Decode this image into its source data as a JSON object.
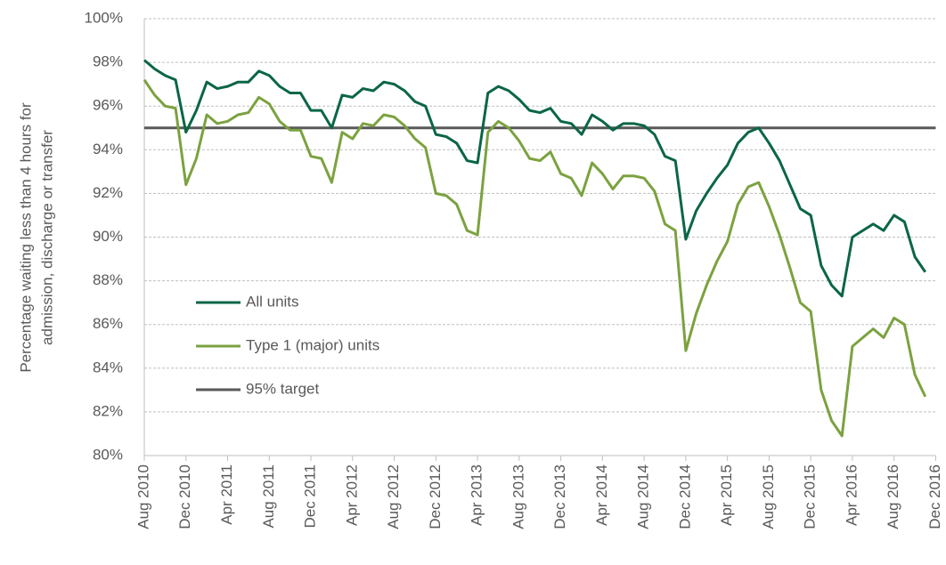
{
  "chart_data": {
    "type": "line",
    "ylabel": [
      "Percentage waiting less than 4 hours for",
      "admission, discharge or transfer"
    ],
    "categories": [
      "Aug 2010",
      null,
      null,
      null,
      "Dec 2010",
      null,
      null,
      null,
      "Apr 2011",
      null,
      null,
      null,
      "Aug 2011",
      null,
      null,
      null,
      "Dec 2011",
      null,
      null,
      null,
      "Apr 2012",
      null,
      null,
      null,
      "Aug 2012",
      null,
      null,
      null,
      "Dec 2012",
      null,
      null,
      null,
      "Apr 2013",
      null,
      null,
      null,
      "Aug 2013",
      null,
      null,
      null,
      "Dec 2013",
      null,
      null,
      null,
      "Apr 2014",
      null,
      null,
      null,
      "Aug 2014",
      null,
      null,
      null,
      "Dec 2014",
      null,
      null,
      null,
      "Apr 2015",
      null,
      null,
      null,
      "Aug 2015",
      null,
      null,
      null,
      "Dec 2015",
      null,
      null,
      null,
      "Apr 2016",
      null,
      null,
      null,
      "Aug 2016",
      null,
      null,
      null,
      "Dec 2016"
    ],
    "series": [
      {
        "name": "All units",
        "color": "#0b6645",
        "values": [
          98.1,
          97.7,
          97.4,
          97.2,
          94.8,
          95.8,
          97.1,
          96.8,
          96.9,
          97.1,
          97.1,
          97.6,
          97.4,
          96.9,
          96.6,
          96.6,
          95.8,
          95.8,
          95.0,
          96.5,
          96.4,
          96.8,
          96.7,
          97.1,
          97.0,
          96.7,
          96.2,
          96.0,
          94.7,
          94.6,
          94.3,
          93.5,
          93.4,
          96.6,
          96.9,
          96.7,
          96.3,
          95.8,
          95.7,
          95.9,
          95.3,
          95.2,
          94.7,
          95.6,
          95.3,
          94.9,
          95.2,
          95.2,
          95.1,
          94.7,
          93.7,
          93.5,
          89.9,
          91.2,
          92.0,
          92.7,
          93.3,
          94.3,
          94.8,
          95.0,
          94.3,
          93.5,
          92.4,
          91.3,
          91.0,
          88.7,
          87.8,
          87.3,
          90.0,
          90.3,
          90.6,
          90.3,
          91.0,
          90.7,
          89.1,
          88.4,
          null
        ]
      },
      {
        "name": "Type 1 (major) units",
        "color": "#7ba23f",
        "values": [
          97.2,
          96.5,
          96.0,
          95.9,
          92.4,
          93.6,
          95.6,
          95.2,
          95.3,
          95.6,
          95.7,
          96.4,
          96.1,
          95.3,
          94.9,
          94.9,
          93.7,
          93.6,
          92.5,
          94.8,
          94.5,
          95.2,
          95.1,
          95.6,
          95.5,
          95.1,
          94.5,
          94.1,
          92.0,
          91.9,
          91.5,
          90.3,
          90.1,
          94.8,
          95.3,
          95.0,
          94.4,
          93.6,
          93.5,
          93.9,
          92.9,
          92.7,
          91.9,
          93.4,
          92.9,
          92.2,
          92.8,
          92.8,
          92.7,
          92.1,
          90.6,
          90.3,
          84.8,
          86.5,
          87.8,
          88.9,
          89.8,
          91.5,
          92.3,
          92.5,
          91.4,
          90.1,
          88.6,
          87.0,
          86.6,
          83.0,
          81.6,
          80.9,
          85.0,
          85.4,
          85.8,
          85.4,
          86.3,
          86.0,
          83.7,
          82.7,
          null
        ]
      }
    ],
    "target": {
      "name": "95% target",
      "value": 95,
      "color": "#595959"
    },
    "ylim": [
      80,
      100
    ],
    "yticks": [
      {
        "value": 80,
        "label": "80%"
      },
      {
        "value": 82,
        "label": "82%"
      },
      {
        "value": 84,
        "label": "84%"
      },
      {
        "value": 86,
        "label": "86%"
      },
      {
        "value": 88,
        "label": "88%"
      },
      {
        "value": 90,
        "label": "90%"
      },
      {
        "value": 92,
        "label": "92%"
      },
      {
        "value": 94,
        "label": "94%"
      },
      {
        "value": 96,
        "label": "96%"
      },
      {
        "value": 98,
        "label": "98%"
      },
      {
        "value": 100,
        "label": "100%"
      }
    ],
    "grid": true
  }
}
